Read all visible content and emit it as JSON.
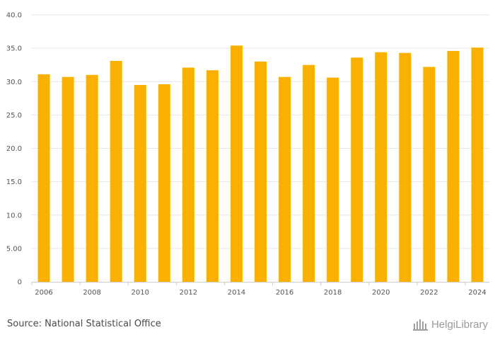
{
  "chart_data": {
    "type": "bar",
    "categories": [
      "2006",
      "2007",
      "2008",
      "2009",
      "2010",
      "2011",
      "2012",
      "2013",
      "2014",
      "2015",
      "2016",
      "2017",
      "2018",
      "2019",
      "2020",
      "2021",
      "2022",
      "2023",
      "2024"
    ],
    "x_tick_labels": [
      "2006",
      "",
      "2008",
      "",
      "2010",
      "",
      "2012",
      "",
      "2014",
      "",
      "2016",
      "",
      "2018",
      "",
      "2020",
      "",
      "2022",
      "",
      "2024"
    ],
    "values": [
      31.1,
      30.7,
      31.0,
      33.1,
      29.5,
      29.6,
      32.1,
      31.7,
      35.4,
      33.0,
      30.7,
      32.5,
      30.6,
      33.6,
      34.4,
      34.3,
      32.2,
      34.6,
      35.1
    ],
    "y_tick_labels": [
      "0",
      "5.00",
      "10.0",
      "15.0",
      "20.0",
      "25.0",
      "30.0",
      "35.0",
      "40.0"
    ],
    "ylim": [
      0,
      40
    ],
    "title": "",
    "xlabel": "",
    "ylabel": "",
    "grid": true,
    "bar_color": "#f9b000"
  },
  "footer": {
    "source": "Source: National Statistical Office",
    "logo_text": "HelgiLibrary",
    "logo_icon": "helgi-library-logo-icon"
  }
}
